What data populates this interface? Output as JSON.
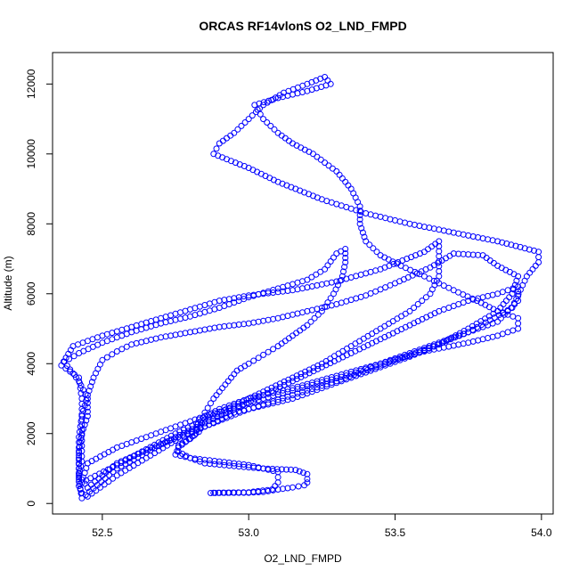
{
  "chart_data": {
    "type": "scatter",
    "title": "ORCAS RF14vlonS O2_LND_FMPD",
    "xlabel": "O2_LND_FMPD",
    "ylabel": "Altitude (m)",
    "xlim": [
      52.33,
      54.04
    ],
    "ylim": [
      -300,
      12900
    ],
    "xticks": [
      52.5,
      53.0,
      53.5,
      54.0
    ],
    "xtick_labels": [
      "52.5",
      "53.0",
      "53.5",
      "54.0"
    ],
    "yticks": [
      0,
      2000,
      4000,
      6000,
      8000,
      10000,
      12000
    ],
    "ytick_labels": [
      "0",
      "2000",
      "4000",
      "6000",
      "8000",
      "10000",
      "12000"
    ],
    "grid": false,
    "marker": "open-circle",
    "series_color": "#0000ff",
    "path": [
      [
        52.87,
        300
      ],
      [
        52.9,
        305
      ],
      [
        52.95,
        310
      ],
      [
        53.0,
        310
      ],
      [
        53.05,
        330
      ],
      [
        53.1,
        400
      ],
      [
        53.15,
        460
      ],
      [
        53.19,
        520
      ],
      [
        53.2,
        600
      ],
      [
        53.2,
        700
      ],
      [
        53.2,
        840
      ],
      [
        53.16,
        960
      ],
      [
        53.05,
        1000
      ],
      [
        52.95,
        1070
      ],
      [
        52.85,
        1150
      ],
      [
        52.8,
        1300
      ],
      [
        52.76,
        1480
      ],
      [
        52.76,
        1650
      ],
      [
        52.8,
        1850
      ],
      [
        52.83,
        2050
      ],
      [
        52.84,
        2300
      ],
      [
        52.85,
        2600
      ],
      [
        52.88,
        3000
      ],
      [
        52.9,
        3200
      ],
      [
        52.93,
        3500
      ],
      [
        52.96,
        3800
      ],
      [
        53.0,
        4000
      ],
      [
        53.05,
        4250
      ],
      [
        53.1,
        4500
      ],
      [
        53.15,
        4800
      ],
      [
        53.2,
        5100
      ],
      [
        53.25,
        5500
      ],
      [
        53.29,
        6000
      ],
      [
        53.32,
        6500
      ],
      [
        53.33,
        6900
      ],
      [
        53.33,
        7280
      ],
      [
        53.3,
        7150
      ],
      [
        53.26,
        6700
      ],
      [
        53.2,
        6400
      ],
      [
        53.1,
        6150
      ],
      [
        53.0,
        5900
      ],
      [
        52.9,
        5600
      ],
      [
        52.8,
        5350
      ],
      [
        52.7,
        5150
      ],
      [
        52.6,
        4900
      ],
      [
        52.5,
        4600
      ],
      [
        52.42,
        4300
      ],
      [
        52.37,
        4050
      ],
      [
        52.42,
        3500
      ],
      [
        52.45,
        3000
      ],
      [
        52.45,
        2500
      ],
      [
        52.43,
        2000
      ],
      [
        52.42,
        1500
      ],
      [
        52.42,
        1000
      ],
      [
        52.42,
        500
      ],
      [
        52.43,
        300
      ],
      [
        52.45,
        200
      ],
      [
        52.55,
        800
      ],
      [
        52.65,
        1300
      ],
      [
        52.75,
        1800
      ],
      [
        52.85,
        2200
      ],
      [
        52.95,
        2600
      ],
      [
        53.05,
        2800
      ],
      [
        53.15,
        3000
      ],
      [
        53.25,
        3300
      ],
      [
        53.35,
        3600
      ],
      [
        53.45,
        3900
      ],
      [
        53.55,
        4200
      ],
      [
        53.65,
        4550
      ],
      [
        53.75,
        5000
      ],
      [
        53.85,
        5500
      ],
      [
        53.9,
        6000
      ],
      [
        53.92,
        6500
      ],
      [
        53.85,
        6800
      ],
      [
        53.8,
        7100
      ],
      [
        53.7,
        7150
      ],
      [
        53.62,
        6750
      ],
      [
        53.5,
        6300
      ],
      [
        53.4,
        5950
      ],
      [
        53.3,
        5700
      ],
      [
        53.2,
        5500
      ],
      [
        53.1,
        5300
      ],
      [
        53.0,
        5150
      ],
      [
        52.9,
        5050
      ],
      [
        52.8,
        4900
      ],
      [
        52.7,
        4750
      ],
      [
        52.6,
        4550
      ],
      [
        52.55,
        4350
      ],
      [
        52.5,
        4100
      ],
      [
        52.47,
        3600
      ],
      [
        52.45,
        3100
      ],
      [
        52.43,
        2500
      ],
      [
        52.42,
        1900
      ],
      [
        52.42,
        1300
      ],
      [
        52.42,
        700
      ],
      [
        52.43,
        150
      ],
      [
        52.55,
        1000
      ],
      [
        52.65,
        1450
      ],
      [
        52.75,
        1900
      ],
      [
        52.85,
        2300
      ],
      [
        52.95,
        2700
      ],
      [
        53.05,
        3100
      ],
      [
        53.15,
        3500
      ],
      [
        53.25,
        3900
      ],
      [
        53.35,
        4300
      ],
      [
        53.45,
        4700
      ],
      [
        53.55,
        5100
      ],
      [
        53.65,
        5500
      ],
      [
        53.75,
        5800
      ],
      [
        53.85,
        6000
      ],
      [
        53.92,
        6200
      ],
      [
        53.92,
        5800
      ],
      [
        53.85,
        5200
      ],
      [
        53.75,
        4900
      ],
      [
        53.65,
        4600
      ],
      [
        53.55,
        4300
      ],
      [
        53.45,
        4000
      ],
      [
        53.35,
        3700
      ],
      [
        53.2,
        3350
      ],
      [
        53.05,
        3000
      ],
      [
        52.95,
        2750
      ],
      [
        52.85,
        2500
      ],
      [
        52.75,
        2200
      ],
      [
        52.65,
        1900
      ],
      [
        52.55,
        1600
      ],
      [
        52.45,
        1150
      ],
      [
        52.43,
        600
      ],
      [
        52.55,
        1100
      ],
      [
        52.65,
        1550
      ],
      [
        52.75,
        2000
      ],
      [
        52.85,
        2400
      ],
      [
        52.95,
        2800
      ],
      [
        53.05,
        3200
      ],
      [
        53.15,
        3600
      ],
      [
        53.25,
        4000
      ],
      [
        53.35,
        4500
      ],
      [
        53.45,
        5000
      ],
      [
        53.55,
        5500
      ],
      [
        53.62,
        6000
      ],
      [
        53.65,
        6500
      ],
      [
        53.65,
        7500
      ],
      [
        53.6,
        7200
      ],
      [
        53.45,
        6700
      ],
      [
        53.3,
        6350
      ],
      [
        53.15,
        6100
      ],
      [
        53.0,
        5950
      ],
      [
        52.9,
        5800
      ],
      [
        52.8,
        5550
      ],
      [
        52.7,
        5300
      ],
      [
        52.6,
        5050
      ],
      [
        52.5,
        4800
      ],
      [
        52.4,
        4500
      ],
      [
        52.36,
        3950
      ],
      [
        52.42,
        3600
      ],
      [
        52.43,
        3000
      ],
      [
        52.43,
        2400
      ],
      [
        52.43,
        1800
      ],
      [
        52.43,
        1200
      ],
      [
        52.42,
        800
      ],
      [
        52.45,
        450
      ],
      [
        52.55,
        1150
      ],
      [
        52.7,
        1700
      ],
      [
        52.85,
        2200
      ],
      [
        53.0,
        2700
      ],
      [
        53.15,
        3100
      ],
      [
        53.3,
        3500
      ],
      [
        53.45,
        3950
      ],
      [
        53.6,
        4400
      ],
      [
        53.75,
        4900
      ],
      [
        53.9,
        5600
      ],
      [
        53.95,
        6500
      ],
      [
        53.99,
        6900
      ],
      [
        53.99,
        7200
      ],
      [
        53.85,
        7500
      ],
      [
        53.7,
        7750
      ],
      [
        53.55,
        8000
      ],
      [
        53.4,
        8300
      ],
      [
        53.25,
        8700
      ],
      [
        53.1,
        9200
      ],
      [
        53.0,
        9600
      ],
      [
        52.88,
        10000
      ],
      [
        52.9,
        10300
      ],
      [
        52.95,
        10600
      ],
      [
        53.0,
        11000
      ],
      [
        53.05,
        11400
      ],
      [
        53.12,
        11750
      ],
      [
        53.2,
        12000
      ],
      [
        53.26,
        12200
      ],
      [
        53.28,
        12000
      ],
      [
        53.2,
        11800
      ],
      [
        53.1,
        11600
      ],
      [
        53.02,
        11400
      ],
      [
        53.05,
        11000
      ],
      [
        53.1,
        10600
      ],
      [
        53.15,
        10300
      ],
      [
        53.22,
        10000
      ],
      [
        53.3,
        9500
      ],
      [
        53.35,
        9000
      ],
      [
        53.38,
        8500
      ],
      [
        53.38,
        8000
      ],
      [
        53.4,
        7500
      ],
      [
        53.45,
        7100
      ],
      [
        53.52,
        6800
      ],
      [
        53.6,
        6500
      ],
      [
        53.65,
        6300
      ],
      [
        53.7,
        6100
      ],
      [
        53.78,
        5800
      ],
      [
        53.85,
        5500
      ],
      [
        53.92,
        5300
      ],
      [
        53.92,
        5000
      ],
      [
        53.85,
        4800
      ],
      [
        53.75,
        4600
      ],
      [
        53.6,
        4350
      ],
      [
        53.45,
        4000
      ],
      [
        53.3,
        3650
      ],
      [
        53.15,
        3300
      ],
      [
        53.0,
        3000
      ],
      [
        52.9,
        2700
      ],
      [
        52.83,
        2400
      ],
      [
        52.82,
        2000
      ],
      [
        52.76,
        1600
      ],
      [
        52.75,
        1400
      ],
      [
        52.8,
        1300
      ],
      [
        52.9,
        1200
      ],
      [
        53.0,
        1100
      ],
      [
        53.1,
        900
      ],
      [
        53.1,
        600
      ],
      [
        53.08,
        400
      ],
      [
        53.0,
        320
      ],
      [
        52.93,
        310
      ],
      [
        52.88,
        305
      ]
    ]
  }
}
